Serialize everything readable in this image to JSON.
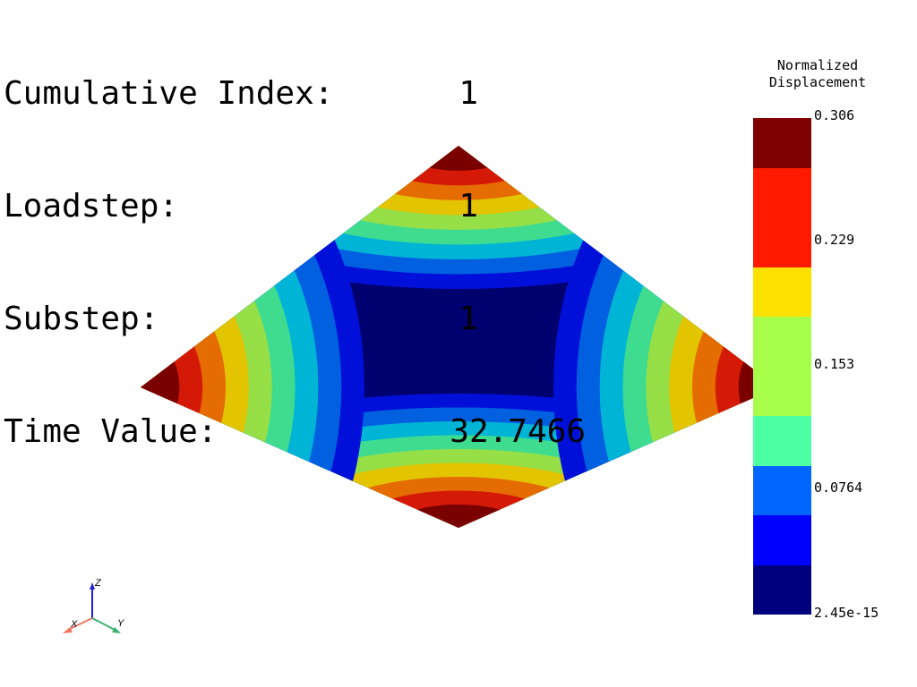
{
  "info": {
    "cumulative_index_label": "Cumulative Index:",
    "cumulative_index_value": "1",
    "loadstep_label": "Loadstep:",
    "loadstep_value": "1",
    "substep_label": "Substep:",
    "substep_value": "1",
    "time_value_label": "Time Value:",
    "time_value_value": "32.7466"
  },
  "legend": {
    "title_line1": "Normalized",
    "title_line2": "Displacement",
    "ticks": [
      "0.306",
      "0.229",
      "0.153",
      "0.0764",
      "2.45e-15"
    ],
    "band_colors": [
      "#7f0000",
      "#ff1a00",
      "#ffe100",
      "#a8ff4a",
      "#4cffa3",
      "#0066ff",
      "#0000ff",
      "#00007f"
    ]
  },
  "contour_colors": [
    "#00006e",
    "#0010d8",
    "#0060e0",
    "#00b4d6",
    "#3fdc90",
    "#96df46",
    "#e3c400",
    "#e46c00",
    "#d41a06",
    "#7a0000"
  ],
  "axes": {
    "x_label": "X",
    "y_label": "Y",
    "z_label": "Z",
    "x_color": "#f07860",
    "y_color": "#40b070",
    "z_color": "#2020d0"
  }
}
